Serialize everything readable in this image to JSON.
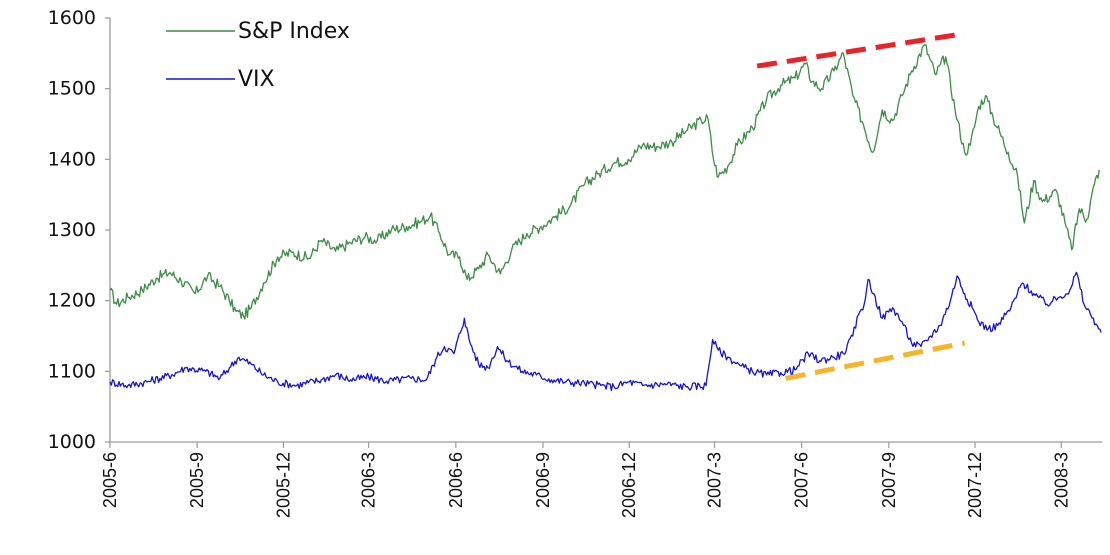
{
  "chart_data": {
    "type": "line",
    "title": "",
    "xlabel": "",
    "ylabel": "",
    "ylim": [
      1000,
      1600
    ],
    "yticks": [
      "1000",
      "1100",
      "1200",
      "1300",
      "1400",
      "1500",
      "1600"
    ],
    "xticks": [
      "2005-6",
      "2005-9",
      "2005-12",
      "2006-3",
      "2006-6",
      "2006-9",
      "2006-12",
      "2007-3",
      "2007-6",
      "2007-9",
      "2007-12",
      "2008-3"
    ],
    "legend": "top-left",
    "grid": false,
    "series": [
      {
        "name": "S&P Index",
        "color": "#3c8c46",
        "points": [
          [
            "2005-06-01",
            1215
          ],
          [
            "2005-06-08",
            1195
          ],
          [
            "2005-06-20",
            1205
          ],
          [
            "2005-07-05",
            1215
          ],
          [
            "2005-07-20",
            1232
          ],
          [
            "2005-08-03",
            1240
          ],
          [
            "2005-08-15",
            1228
          ],
          [
            "2005-08-30",
            1210
          ],
          [
            "2005-09-12",
            1235
          ],
          [
            "2005-09-25",
            1220
          ],
          [
            "2005-10-05",
            1200
          ],
          [
            "2005-10-12",
            1185
          ],
          [
            "2005-10-20",
            1178
          ],
          [
            "2005-10-28",
            1190
          ],
          [
            "2005-11-10",
            1225
          ],
          [
            "2005-11-25",
            1262
          ],
          [
            "2005-12-10",
            1268
          ],
          [
            "2005-12-28",
            1260
          ],
          [
            "2006-01-10",
            1285
          ],
          [
            "2006-01-25",
            1270
          ],
          [
            "2006-02-10",
            1282
          ],
          [
            "2006-02-25",
            1290
          ],
          [
            "2006-03-10",
            1285
          ],
          [
            "2006-03-25",
            1300
          ],
          [
            "2006-04-10",
            1305
          ],
          [
            "2006-04-25",
            1312
          ],
          [
            "2006-05-05",
            1320
          ],
          [
            "2006-05-15",
            1295
          ],
          [
            "2006-05-25",
            1265
          ],
          [
            "2006-06-05",
            1262
          ],
          [
            "2006-06-13",
            1230
          ],
          [
            "2006-06-25",
            1245
          ],
          [
            "2006-07-05",
            1265
          ],
          [
            "2006-07-18",
            1238
          ],
          [
            "2006-07-30",
            1272
          ],
          [
            "2006-08-15",
            1295
          ],
          [
            "2006-08-30",
            1305
          ],
          [
            "2006-09-15",
            1320
          ],
          [
            "2006-09-30",
            1335
          ],
          [
            "2006-10-15",
            1365
          ],
          [
            "2006-10-30",
            1380
          ],
          [
            "2006-11-15",
            1395
          ],
          [
            "2006-11-30",
            1400
          ],
          [
            "2006-12-15",
            1420
          ],
          [
            "2006-12-30",
            1418
          ],
          [
            "2007-01-15",
            1425
          ],
          [
            "2007-01-30",
            1440
          ],
          [
            "2007-02-15",
            1455
          ],
          [
            "2007-02-22",
            1458
          ],
          [
            "2007-02-28",
            1400
          ],
          [
            "2007-03-05",
            1375
          ],
          [
            "2007-03-15",
            1390
          ],
          [
            "2007-03-25",
            1420
          ],
          [
            "2007-04-10",
            1445
          ],
          [
            "2007-04-25",
            1485
          ],
          [
            "2007-05-10",
            1505
          ],
          [
            "2007-05-25",
            1515
          ],
          [
            "2007-06-05",
            1535
          ],
          [
            "2007-06-12",
            1510
          ],
          [
            "2007-06-22",
            1500
          ],
          [
            "2007-07-05",
            1525
          ],
          [
            "2007-07-15",
            1550
          ],
          [
            "2007-07-25",
            1490
          ],
          [
            "2007-08-05",
            1450
          ],
          [
            "2007-08-15",
            1410
          ],
          [
            "2007-08-25",
            1470
          ],
          [
            "2007-09-05",
            1455
          ],
          [
            "2007-09-15",
            1490
          ],
          [
            "2007-09-25",
            1525
          ],
          [
            "2007-10-09",
            1562
          ],
          [
            "2007-10-20",
            1520
          ],
          [
            "2007-10-31",
            1545
          ],
          [
            "2007-11-10",
            1470
          ],
          [
            "2007-11-20",
            1410
          ],
          [
            "2007-11-26",
            1420
          ],
          [
            "2007-12-05",
            1475
          ],
          [
            "2007-12-12",
            1490
          ],
          [
            "2007-12-20",
            1460
          ],
          [
            "2008-01-05",
            1410
          ],
          [
            "2008-01-15",
            1375
          ],
          [
            "2008-01-22",
            1310
          ],
          [
            "2008-02-01",
            1370
          ],
          [
            "2008-02-10",
            1340
          ],
          [
            "2008-02-25",
            1355
          ],
          [
            "2008-03-05",
            1310
          ],
          [
            "2008-03-12",
            1272
          ],
          [
            "2008-03-20",
            1330
          ],
          [
            "2008-03-28",
            1315
          ],
          [
            "2008-04-05",
            1365
          ],
          [
            "2008-04-10",
            1385
          ]
        ]
      },
      {
        "name": "VIX",
        "color": "#1414d2",
        "points": [
          [
            "2005-06-01",
            1085
          ],
          [
            "2005-06-20",
            1080
          ],
          [
            "2005-07-10",
            1085
          ],
          [
            "2005-08-05",
            1095
          ],
          [
            "2005-08-20",
            1105
          ],
          [
            "2005-09-10",
            1100
          ],
          [
            "2005-09-25",
            1090
          ],
          [
            "2005-10-05",
            1105
          ],
          [
            "2005-10-15",
            1120
          ],
          [
            "2005-10-28",
            1110
          ],
          [
            "2005-11-10",
            1095
          ],
          [
            "2005-11-25",
            1085
          ],
          [
            "2005-12-15",
            1080
          ],
          [
            "2006-01-10",
            1088
          ],
          [
            "2006-01-25",
            1095
          ],
          [
            "2006-02-10",
            1088
          ],
          [
            "2006-03-01",
            1092
          ],
          [
            "2006-03-20",
            1086
          ],
          [
            "2006-04-15",
            1090
          ],
          [
            "2006-05-01",
            1088
          ],
          [
            "2006-05-12",
            1120
          ],
          [
            "2006-05-20",
            1135
          ],
          [
            "2006-05-30",
            1125
          ],
          [
            "2006-06-10",
            1175
          ],
          [
            "2006-06-15",
            1145
          ],
          [
            "2006-06-25",
            1110
          ],
          [
            "2006-07-05",
            1105
          ],
          [
            "2006-07-15",
            1135
          ],
          [
            "2006-07-25",
            1115
          ],
          [
            "2006-08-10",
            1100
          ],
          [
            "2006-08-25",
            1095
          ],
          [
            "2006-09-10",
            1088
          ],
          [
            "2006-09-25",
            1085
          ],
          [
            "2006-10-15",
            1083
          ],
          [
            "2006-11-01",
            1080
          ],
          [
            "2006-11-15",
            1078
          ],
          [
            "2006-12-01",
            1085
          ],
          [
            "2006-12-15",
            1080
          ],
          [
            "2007-01-10",
            1082
          ],
          [
            "2007-01-30",
            1078
          ],
          [
            "2007-02-20",
            1080
          ],
          [
            "2007-02-27",
            1145
          ],
          [
            "2007-03-05",
            1130
          ],
          [
            "2007-03-15",
            1120
          ],
          [
            "2007-03-28",
            1108
          ],
          [
            "2007-04-10",
            1100
          ],
          [
            "2007-04-25",
            1095
          ],
          [
            "2007-05-10",
            1098
          ],
          [
            "2007-05-25",
            1102
          ],
          [
            "2007-06-08",
            1125
          ],
          [
            "2007-06-20",
            1115
          ],
          [
            "2007-07-05",
            1120
          ],
          [
            "2007-07-15",
            1125
          ],
          [
            "2007-07-25",
            1150
          ],
          [
            "2007-07-31",
            1180
          ],
          [
            "2007-08-06",
            1195
          ],
          [
            "2007-08-10",
            1230
          ],
          [
            "2007-08-16",
            1210
          ],
          [
            "2007-08-25",
            1175
          ],
          [
            "2007-09-05",
            1190
          ],
          [
            "2007-09-15",
            1170
          ],
          [
            "2007-09-25",
            1140
          ],
          [
            "2007-10-05",
            1135
          ],
          [
            "2007-10-15",
            1150
          ],
          [
            "2007-10-25",
            1165
          ],
          [
            "2007-11-05",
            1200
          ],
          [
            "2007-11-12",
            1235
          ],
          [
            "2007-11-20",
            1210
          ],
          [
            "2007-11-28",
            1190
          ],
          [
            "2007-12-05",
            1170
          ],
          [
            "2007-12-15",
            1160
          ],
          [
            "2007-12-25",
            1165
          ],
          [
            "2008-01-08",
            1190
          ],
          [
            "2008-01-20",
            1225
          ],
          [
            "2008-02-01",
            1210
          ],
          [
            "2008-02-15",
            1195
          ],
          [
            "2008-02-28",
            1205
          ],
          [
            "2008-03-10",
            1215
          ],
          [
            "2008-03-17",
            1240
          ],
          [
            "2008-03-25",
            1195
          ],
          [
            "2008-04-01",
            1180
          ],
          [
            "2008-04-08",
            1165
          ],
          [
            "2008-04-12",
            1155
          ]
        ]
      }
    ],
    "trendlines": [
      {
        "name": "",
        "color": "#e8232a",
        "dash": true,
        "points": [
          [
            "2007-04-15",
            1532
          ],
          [
            "2007-11-20",
            1578
          ]
        ]
      },
      {
        "name": "",
        "color": "#f5b429",
        "dash": true,
        "points": [
          [
            "2007-05-15",
            1090
          ],
          [
            "2007-11-20",
            1140
          ]
        ]
      }
    ]
  }
}
